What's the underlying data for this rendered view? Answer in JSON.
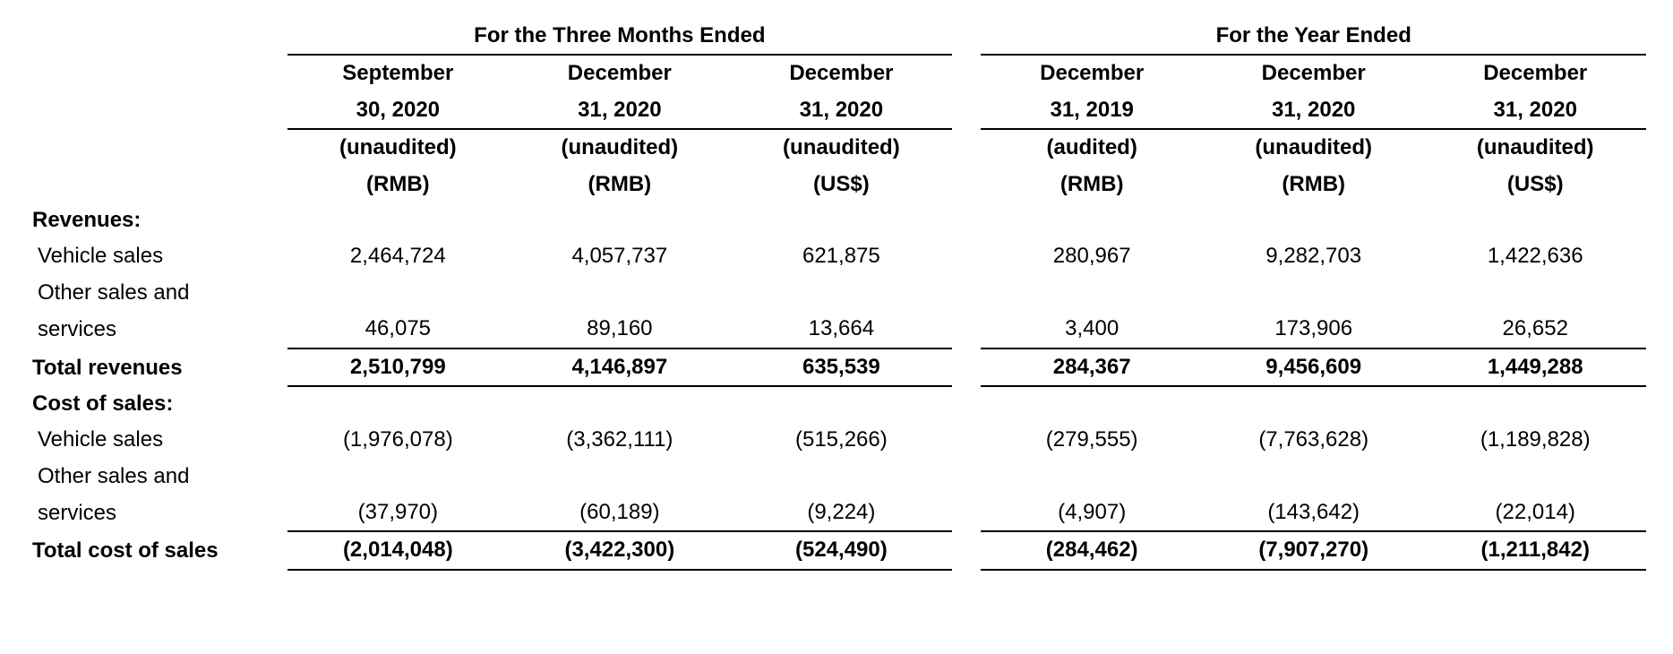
{
  "header": {
    "group1": "For the Three Months Ended",
    "group2": "For the Year Ended"
  },
  "cols": [
    {
      "date1": "September",
      "date2": "30, 2020",
      "audit": "(unaudited)",
      "curr": "(RMB)"
    },
    {
      "date1": "December",
      "date2": "31, 2020",
      "audit": "(unaudited)",
      "curr": "(RMB)"
    },
    {
      "date1": "December",
      "date2": "31, 2020",
      "audit": "(unaudited)",
      "curr": "(US$)"
    },
    {
      "date1": "December",
      "date2": "31, 2019",
      "audit": "(audited)",
      "curr": "(RMB)"
    },
    {
      "date1": "December",
      "date2": "31, 2020",
      "audit": "(unaudited)",
      "curr": "(RMB)"
    },
    {
      "date1": "December",
      "date2": "31, 2020",
      "audit": "(unaudited)",
      "curr": "(US$)"
    }
  ],
  "sections": {
    "revenues_label": "Revenues:",
    "cost_label": "Cost of sales:"
  },
  "rows": {
    "vehicle_sales_label": "Vehicle sales",
    "vehicle_sales": [
      "2,464,724",
      "4,057,737",
      "621,875",
      "280,967",
      "9,282,703",
      "1,422,636"
    ],
    "other_sales_label1": "Other sales and",
    "other_sales_label2": "services",
    "other_sales": [
      "46,075",
      "89,160",
      "13,664",
      "3,400",
      "173,906",
      "26,652"
    ],
    "total_rev_label": "Total revenues",
    "total_rev": [
      "2,510,799",
      "4,146,897",
      "635,539",
      "284,367",
      "9,456,609",
      "1,449,288"
    ],
    "cost_vehicle": [
      "(1,976,078)",
      "(3,362,111)",
      "(515,266)",
      "(279,555)",
      "(7,763,628)",
      "(1,189,828)"
    ],
    "cost_other": [
      "(37,970)",
      "(60,189)",
      "(9,224)",
      "(4,907)",
      "(143,642)",
      "(22,014)"
    ],
    "total_cost_label": "Total cost of sales",
    "total_cost": [
      "(2,014,048)",
      "(3,422,300)",
      "(524,490)",
      "(284,462)",
      "(7,907,270)",
      "(1,211,842)"
    ]
  }
}
